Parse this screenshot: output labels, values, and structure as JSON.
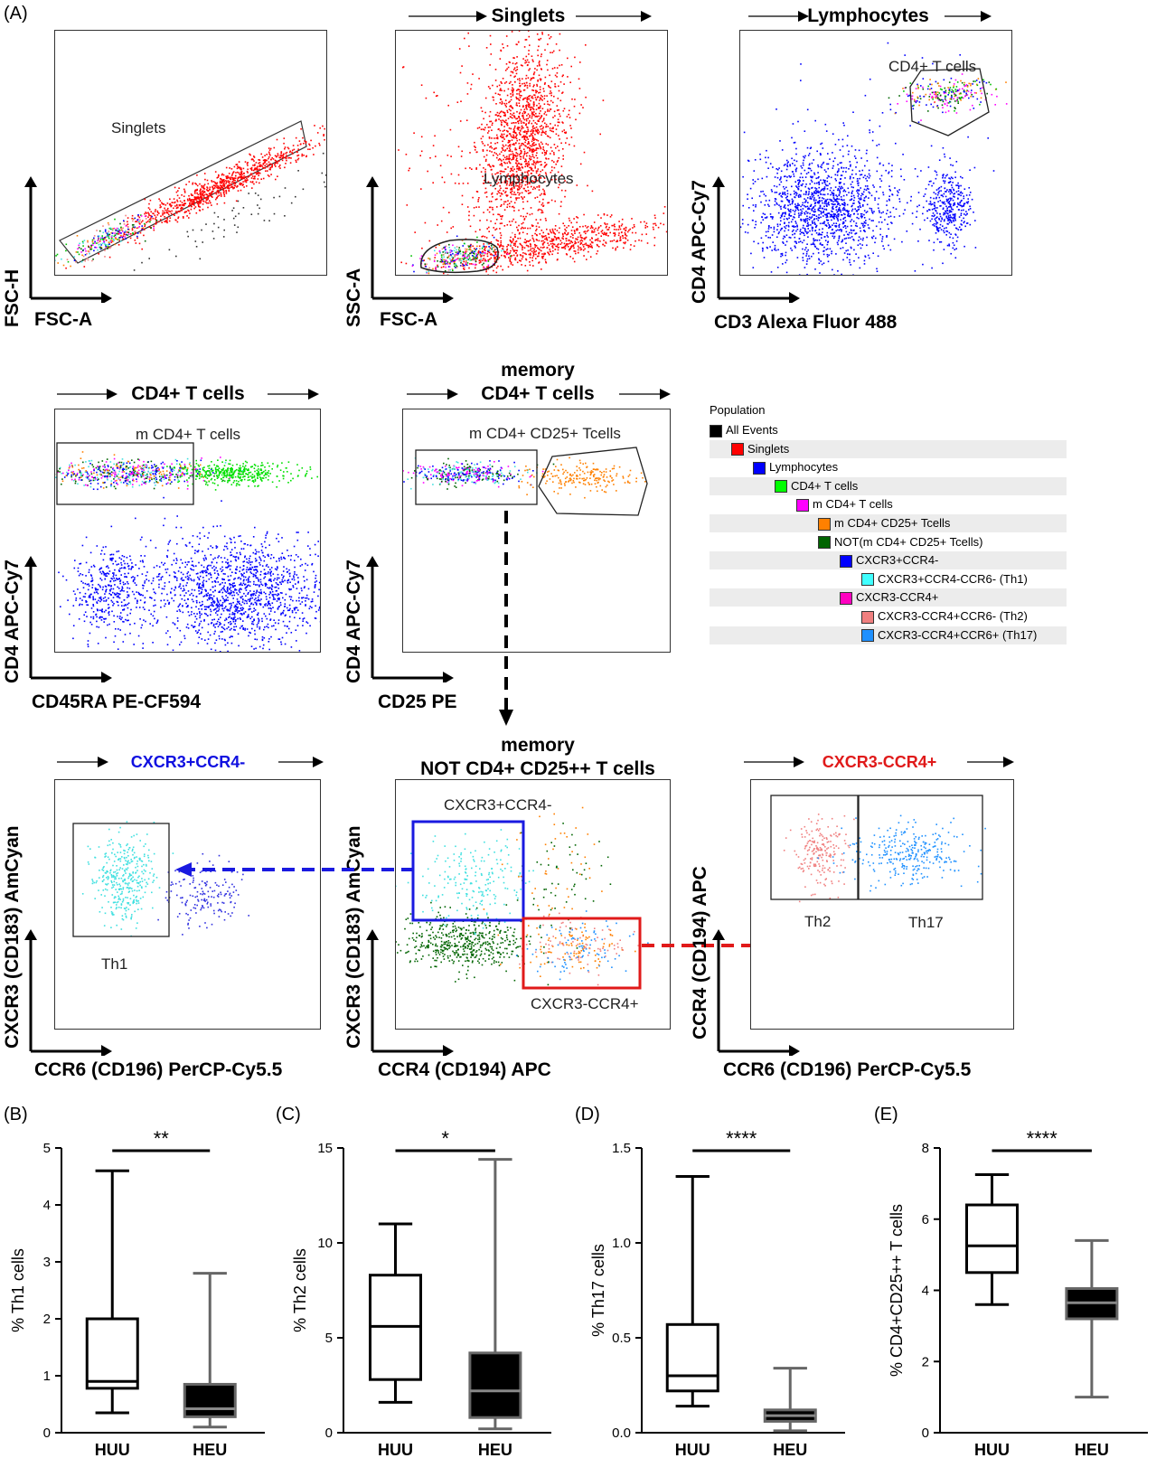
{
  "panel_letters": {
    "A": "(A)",
    "B": "(B)",
    "C": "(C)",
    "D": "(D)",
    "E": "(E)"
  },
  "flow_plots": {
    "p1": {
      "gate_label": "Singlets",
      "x_axis": "FSC-A",
      "y_axis": "FSC-H"
    },
    "p2": {
      "title": "Singlets",
      "gate_label": "Lymphocytes",
      "x_axis": "FSC-A",
      "y_axis": "SSC-A"
    },
    "p3": {
      "title": "Lymphocytes",
      "gate_label": "CD4+ T cells",
      "x_axis": "CD3 Alexa Fluor 488",
      "y_axis": "CD4 APC-Cy7"
    },
    "p4": {
      "title": "CD4+ T cells",
      "gate_label": "m CD4+ T cells",
      "x_axis": "CD45RA PE-CF594",
      "y_axis": "CD4 APC-Cy7"
    },
    "p5": {
      "title_line1": "memory",
      "title_line2": "CD4+ T cells",
      "gate_label": "m CD4+ CD25+ Tcells",
      "x_axis": "CD25 PE",
      "y_axis": "CD4 APC-Cy7"
    },
    "p6": {
      "title": "CXCR3+CCR4-",
      "gate_label": "Th1",
      "x_axis": "CCR6 (CD196) PerCP-Cy5.5",
      "y_axis": "CXCR3 (CD183) AmCyan"
    },
    "p7": {
      "title_line1": "memory",
      "title_line2": "NOT CD4+ CD25++ T cells",
      "gate_label_top": "CXCR3+CCR4-",
      "gate_label_bottom": "CXCR3-CCR4+",
      "x_axis": "CCR4 (CD194) APC",
      "y_axis": "CXCR3 (CD183) AmCyan"
    },
    "p8": {
      "title": "CXCR3-CCR4+",
      "gate_label_left": "Th2",
      "gate_label_right": "Th17",
      "x_axis": "CCR6 (CD196) PerCP-Cy5.5",
      "y_axis": "CCR4 (CD194) APC"
    }
  },
  "population_tree": {
    "header": "Population",
    "items": [
      {
        "label": "All Events",
        "color": "#000000",
        "level": 0
      },
      {
        "label": "Singlets",
        "color": "#ff0000",
        "level": 1
      },
      {
        "label": "Lymphocytes",
        "color": "#0000ff",
        "level": 2
      },
      {
        "label": "CD4+ T cells",
        "color": "#00ff00",
        "level": 3
      },
      {
        "label": "m CD4+ T cells",
        "color": "#ff00ff",
        "level": 4
      },
      {
        "label": "m CD4+ CD25+ Tcells",
        "color": "#ff8000",
        "level": 5
      },
      {
        "label": "NOT(m CD4+ CD25+ Tcells)",
        "color": "#006400",
        "level": 5
      },
      {
        "label": "CXCR3+CCR4-",
        "color": "#0000ff",
        "level": 6
      },
      {
        "label": "CXCR3+CCR4-CCR6- (Th1)",
        "color": "#40ffff",
        "level": 7
      },
      {
        "label": "CXCR3-CCR4+",
        "color": "#ff00c0",
        "level": 6
      },
      {
        "label": "CXCR3-CCR4+CCR6- (Th2)",
        "color": "#f08080",
        "level": 7
      },
      {
        "label": "CXCR3-CCR4+CCR6+ (Th17)",
        "color": "#1e90ff",
        "level": 7
      }
    ]
  },
  "chart_data": [
    {
      "type": "box",
      "panel": "(B)",
      "ylabel": "% Th1 cells",
      "ylim": [
        0,
        5
      ],
      "yticks": [
        0,
        1,
        2,
        3,
        4,
        5
      ],
      "categories": [
        "HUU",
        "HEU"
      ],
      "significance": "**",
      "boxes": [
        {
          "name": "HUU",
          "min": 0.35,
          "q1": 0.78,
          "median": 0.9,
          "q3": 2.0,
          "max": 4.6
        },
        {
          "name": "HEU",
          "min": 0.1,
          "q1": 0.28,
          "median": 0.42,
          "q3": 0.85,
          "max": 2.8
        }
      ]
    },
    {
      "type": "box",
      "panel": "(C)",
      "ylabel": "% Th2 cells",
      "ylim": [
        0,
        15
      ],
      "yticks": [
        0,
        5,
        10,
        15
      ],
      "categories": [
        "HUU",
        "HEU"
      ],
      "significance": "*",
      "boxes": [
        {
          "name": "HUU",
          "min": 1.6,
          "q1": 2.8,
          "median": 5.6,
          "q3": 8.3,
          "max": 11.0
        },
        {
          "name": "HEU",
          "min": 0.2,
          "q1": 0.8,
          "median": 2.2,
          "q3": 4.2,
          "max": 14.4
        }
      ]
    },
    {
      "type": "box",
      "panel": "(D)",
      "ylabel": "% Th17 cells",
      "ylim": [
        0,
        1.5
      ],
      "yticks": [
        0.0,
        0.5,
        1.0,
        1.5
      ],
      "categories": [
        "HUU",
        "HEU"
      ],
      "significance": "****",
      "boxes": [
        {
          "name": "HUU",
          "min": 0.14,
          "q1": 0.22,
          "median": 0.3,
          "q3": 0.57,
          "max": 1.35
        },
        {
          "name": "HEU",
          "min": 0.01,
          "q1": 0.06,
          "median": 0.09,
          "q3": 0.12,
          "max": 0.34
        }
      ]
    },
    {
      "type": "box",
      "panel": "(E)",
      "ylabel": "% CD4+CD25++ T cells",
      "ylim": [
        0,
        8
      ],
      "yticks": [
        0,
        2,
        4,
        6,
        8
      ],
      "categories": [
        "HUU",
        "HEU"
      ],
      "significance": "****",
      "boxes": [
        {
          "name": "HUU",
          "min": 3.6,
          "q1": 4.5,
          "median": 5.25,
          "q3": 6.4,
          "max": 7.25
        },
        {
          "name": "HEU",
          "min": 1.0,
          "q1": 3.2,
          "median": 3.65,
          "q3": 4.05,
          "max": 5.4
        }
      ]
    }
  ]
}
